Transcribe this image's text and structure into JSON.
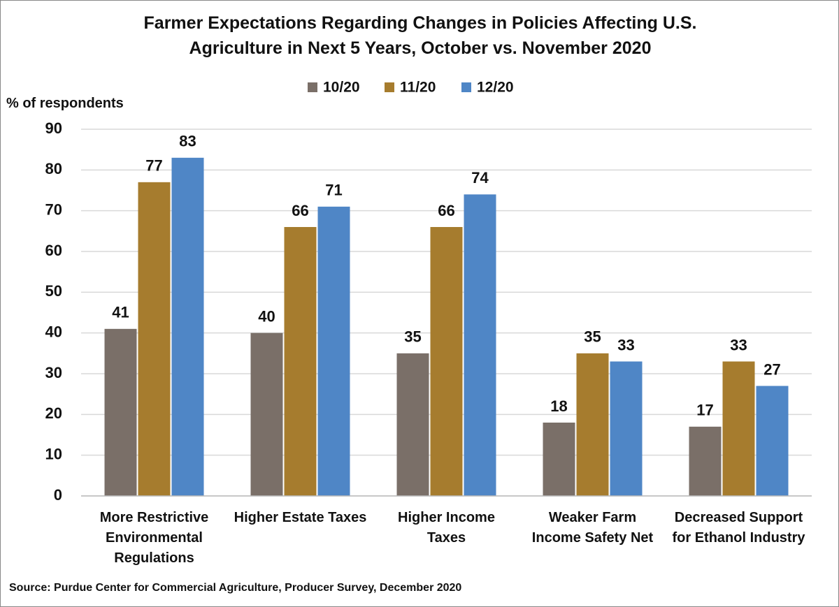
{
  "chart_data": {
    "type": "bar",
    "title": "Farmer Expectations Regarding Changes in Policies Affecting U.S. Agriculture in Next 5 Years, October vs. November 2020",
    "y_axis_label": "% of respondents",
    "source": "Source: Purdue Center for Commercial Agriculture, Producer Survey, December 2020",
    "categories": [
      "More Restrictive Environmental Regulations",
      "Higher Estate Taxes",
      "Higher Income Taxes",
      "Weaker Farm Income Safety Net",
      "Decreased Support for Ethanol Industry"
    ],
    "series": [
      {
        "name": "10/20",
        "color": "#7a6f68",
        "values": [
          41,
          40,
          35,
          18,
          17
        ]
      },
      {
        "name": "11/20",
        "color": "#a67c2e",
        "values": [
          77,
          66,
          66,
          35,
          33
        ]
      },
      {
        "name": "12/20",
        "color": "#4f86c6",
        "values": [
          83,
          71,
          74,
          33,
          27
        ]
      }
    ],
    "ylim": [
      0,
      90
    ],
    "yticks": [
      0,
      10,
      20,
      30,
      40,
      50,
      60,
      70,
      80,
      90
    ],
    "grid": true,
    "legend": "top"
  }
}
